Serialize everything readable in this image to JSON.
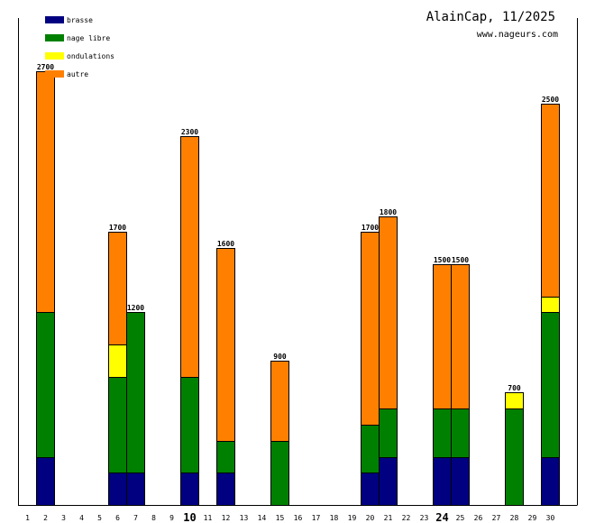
{
  "chart_data": {
    "type": "bar",
    "stacked": true,
    "title": "AlainCap, 11/2025",
    "subtitle": "www.nageurs.com",
    "xlabel": "",
    "ylabel": "",
    "ylim": [
      0,
      2700
    ],
    "grid": false,
    "legend_position": "top-left",
    "categories": [
      "1",
      "2",
      "3",
      "4",
      "5",
      "6",
      "7",
      "8",
      "9",
      "10",
      "11",
      "12",
      "13",
      "14",
      "15",
      "16",
      "17",
      "18",
      "19",
      "20",
      "21",
      "22",
      "23",
      "24",
      "25",
      "26",
      "27",
      "28",
      "29",
      "30"
    ],
    "major_ticks": [
      "10",
      "24"
    ],
    "series": [
      {
        "name": "brasse",
        "color": "#000080",
        "values": [
          0,
          300,
          0,
          0,
          0,
          200,
          200,
          0,
          0,
          200,
          0,
          200,
          0,
          0,
          0,
          0,
          0,
          0,
          0,
          200,
          300,
          0,
          0,
          300,
          300,
          0,
          0,
          0,
          0,
          300
        ]
      },
      {
        "name": "nage libre",
        "color": "#008000",
        "values": [
          0,
          900,
          0,
          0,
          0,
          600,
          1000,
          0,
          0,
          600,
          0,
          200,
          0,
          0,
          400,
          0,
          0,
          0,
          0,
          300,
          300,
          0,
          0,
          300,
          300,
          0,
          0,
          600,
          0,
          900
        ]
      },
      {
        "name": "ondulations",
        "color": "#ffff00",
        "values": [
          0,
          0,
          0,
          0,
          0,
          200,
          0,
          0,
          0,
          0,
          0,
          0,
          0,
          0,
          0,
          0,
          0,
          0,
          0,
          0,
          0,
          0,
          0,
          0,
          0,
          0,
          0,
          100,
          0,
          100
        ]
      },
      {
        "name": "autre",
        "color": "#ff8000",
        "values": [
          0,
          1500,
          0,
          0,
          0,
          700,
          0,
          0,
          0,
          1500,
          0,
          1200,
          0,
          0,
          500,
          0,
          0,
          0,
          0,
          1200,
          1200,
          0,
          0,
          900,
          900,
          0,
          0,
          0,
          0,
          1200
        ]
      }
    ],
    "totals": [
      0,
      2700,
      0,
      0,
      0,
      1700,
      1200,
      0,
      0,
      2300,
      0,
      1600,
      0,
      0,
      900,
      0,
      0,
      0,
      0,
      1700,
      1800,
      0,
      0,
      1500,
      1500,
      0,
      0,
      700,
      0,
      2500
    ]
  }
}
